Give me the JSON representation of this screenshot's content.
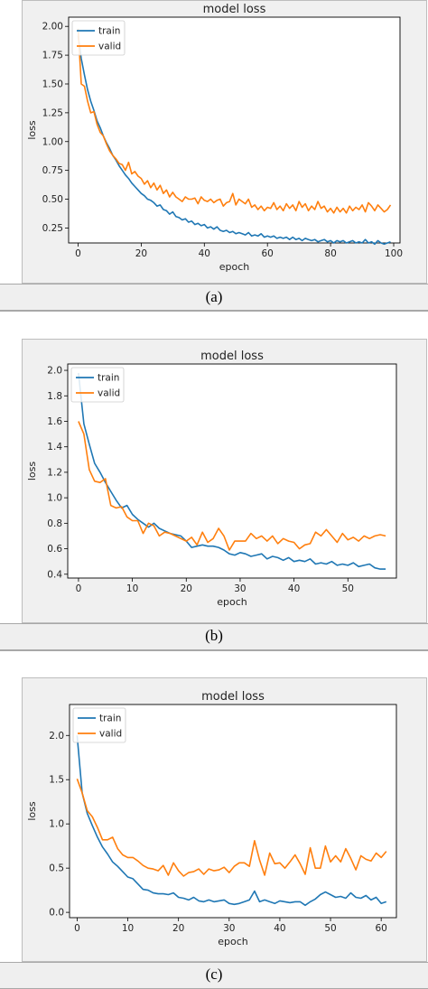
{
  "figure": {
    "captions": [
      "(a)",
      "(b)",
      "(c)"
    ]
  },
  "chart_data": [
    {
      "type": "line",
      "title": "model loss",
      "xlabel": "epoch",
      "ylabel": "loss",
      "xlim": [
        -3,
        102
      ],
      "ylim": [
        0.12,
        2.08
      ],
      "xticks": [
        0,
        20,
        40,
        60,
        80,
        100
      ],
      "yticks": [
        0.25,
        0.5,
        0.75,
        1.0,
        1.25,
        1.5,
        1.75,
        2.0
      ],
      "ytick_labels": [
        "0.25",
        "0.50",
        "0.75",
        "1.00",
        "1.25",
        "1.50",
        "1.75",
        "2.00"
      ],
      "grid": false,
      "legend": "top-left",
      "series": [
        {
          "name": "train",
          "color": "#1f77b4",
          "x": [
            0,
            1,
            2,
            3,
            4,
            5,
            6,
            7,
            8,
            9,
            10,
            11,
            12,
            13,
            14,
            15,
            16,
            17,
            18,
            19,
            20,
            21,
            22,
            23,
            24,
            25,
            26,
            27,
            28,
            29,
            30,
            31,
            32,
            33,
            34,
            35,
            36,
            37,
            38,
            39,
            40,
            41,
            42,
            43,
            44,
            45,
            46,
            47,
            48,
            49,
            50,
            51,
            52,
            53,
            54,
            55,
            56,
            57,
            58,
            59,
            60,
            61,
            62,
            63,
            64,
            65,
            66,
            67,
            68,
            69,
            70,
            71,
            72,
            73,
            74,
            75,
            76,
            77,
            78,
            79,
            80,
            81,
            82,
            83,
            84,
            85,
            86,
            87,
            88,
            89,
            90,
            91,
            92,
            93,
            94,
            95,
            96,
            97,
            98,
            99
          ],
          "y": [
            1.92,
            1.72,
            1.58,
            1.45,
            1.35,
            1.27,
            1.18,
            1.12,
            1.05,
            0.99,
            0.94,
            0.88,
            0.84,
            0.79,
            0.75,
            0.71,
            0.68,
            0.64,
            0.61,
            0.58,
            0.55,
            0.53,
            0.5,
            0.49,
            0.47,
            0.44,
            0.45,
            0.41,
            0.4,
            0.37,
            0.39,
            0.35,
            0.34,
            0.32,
            0.33,
            0.3,
            0.31,
            0.28,
            0.29,
            0.27,
            0.28,
            0.25,
            0.26,
            0.24,
            0.26,
            0.23,
            0.22,
            0.23,
            0.21,
            0.22,
            0.2,
            0.21,
            0.2,
            0.19,
            0.21,
            0.18,
            0.19,
            0.18,
            0.2,
            0.17,
            0.18,
            0.17,
            0.18,
            0.16,
            0.17,
            0.16,
            0.17,
            0.15,
            0.17,
            0.15,
            0.16,
            0.14,
            0.16,
            0.15,
            0.14,
            0.15,
            0.13,
            0.14,
            0.15,
            0.13,
            0.14,
            0.12,
            0.14,
            0.13,
            0.14,
            0.12,
            0.13,
            0.14,
            0.12,
            0.13,
            0.12,
            0.15,
            0.12,
            0.13,
            0.11,
            0.14,
            0.12,
            0.11,
            0.12,
            0.13
          ]
        },
        {
          "name": "valid",
          "color": "#ff7f0e",
          "x": [
            0,
            1,
            2,
            3,
            4,
            5,
            6,
            7,
            8,
            9,
            10,
            11,
            12,
            13,
            14,
            15,
            16,
            17,
            18,
            19,
            20,
            21,
            22,
            23,
            24,
            25,
            26,
            27,
            28,
            29,
            30,
            31,
            32,
            33,
            34,
            35,
            36,
            37,
            38,
            39,
            40,
            41,
            42,
            43,
            44,
            45,
            46,
            47,
            48,
            49,
            50,
            51,
            52,
            53,
            54,
            55,
            56,
            57,
            58,
            59,
            60,
            61,
            62,
            63,
            64,
            65,
            66,
            67,
            68,
            69,
            70,
            71,
            72,
            73,
            74,
            75,
            76,
            77,
            78,
            79,
            80,
            81,
            82,
            83,
            84,
            85,
            86,
            87,
            88,
            89,
            90,
            91,
            92,
            93,
            94,
            95,
            96,
            97,
            98,
            99
          ],
          "y": [
            1.98,
            1.5,
            1.48,
            1.35,
            1.25,
            1.26,
            1.15,
            1.08,
            1.05,
            0.98,
            0.92,
            0.88,
            0.85,
            0.81,
            0.8,
            0.75,
            0.82,
            0.72,
            0.74,
            0.7,
            0.68,
            0.63,
            0.66,
            0.6,
            0.64,
            0.58,
            0.62,
            0.55,
            0.58,
            0.52,
            0.56,
            0.52,
            0.5,
            0.48,
            0.52,
            0.5,
            0.5,
            0.51,
            0.46,
            0.52,
            0.49,
            0.48,
            0.5,
            0.47,
            0.49,
            0.5,
            0.44,
            0.47,
            0.48,
            0.55,
            0.45,
            0.5,
            0.48,
            0.46,
            0.5,
            0.43,
            0.45,
            0.41,
            0.44,
            0.4,
            0.43,
            0.42,
            0.47,
            0.41,
            0.44,
            0.4,
            0.46,
            0.42,
            0.45,
            0.4,
            0.48,
            0.43,
            0.46,
            0.4,
            0.44,
            0.41,
            0.48,
            0.42,
            0.44,
            0.39,
            0.42,
            0.38,
            0.43,
            0.39,
            0.42,
            0.38,
            0.44,
            0.4,
            0.43,
            0.41,
            0.45,
            0.39,
            0.47,
            0.44,
            0.4,
            0.45,
            0.42,
            0.39,
            0.41,
            0.45
          ]
        }
      ]
    },
    {
      "type": "line",
      "title": "model loss",
      "xlabel": "epoch",
      "ylabel": "loss",
      "xlim": [
        -2,
        59
      ],
      "ylim": [
        0.37,
        2.05
      ],
      "xticks": [
        0,
        10,
        20,
        30,
        40,
        50
      ],
      "yticks": [
        0.4,
        0.6,
        0.8,
        1.0,
        1.2,
        1.4,
        1.6,
        1.8,
        2.0
      ],
      "ytick_labels": [
        "0.4",
        "0.6",
        "0.8",
        "1.0",
        "1.2",
        "1.4",
        "1.6",
        "1.8",
        "2.0"
      ],
      "grid": false,
      "legend": "top-left",
      "series": [
        {
          "name": "train",
          "color": "#1f77b4",
          "x": [
            0,
            1,
            2,
            3,
            4,
            5,
            6,
            7,
            8,
            9,
            10,
            11,
            12,
            13,
            14,
            15,
            16,
            17,
            18,
            19,
            20,
            21,
            22,
            23,
            24,
            25,
            26,
            27,
            28,
            29,
            30,
            31,
            32,
            33,
            34,
            35,
            36,
            37,
            38,
            39,
            40,
            41,
            42,
            43,
            44,
            45,
            46,
            47,
            48,
            49,
            50,
            51,
            52,
            53,
            54,
            55,
            56,
            57
          ],
          "y": [
            1.98,
            1.58,
            1.42,
            1.27,
            1.2,
            1.12,
            1.05,
            0.98,
            0.92,
            0.94,
            0.87,
            0.83,
            0.8,
            0.77,
            0.8,
            0.76,
            0.74,
            0.72,
            0.71,
            0.7,
            0.66,
            0.61,
            0.62,
            0.63,
            0.62,
            0.62,
            0.61,
            0.59,
            0.56,
            0.55,
            0.57,
            0.56,
            0.54,
            0.55,
            0.56,
            0.52,
            0.54,
            0.53,
            0.51,
            0.53,
            0.5,
            0.51,
            0.5,
            0.52,
            0.48,
            0.49,
            0.48,
            0.5,
            0.47,
            0.48,
            0.47,
            0.49,
            0.46,
            0.47,
            0.48,
            0.45,
            0.44,
            0.44
          ]
        },
        {
          "name": "valid",
          "color": "#ff7f0e",
          "x": [
            0,
            1,
            2,
            3,
            4,
            5,
            6,
            7,
            8,
            9,
            10,
            11,
            12,
            13,
            14,
            15,
            16,
            17,
            18,
            19,
            20,
            21,
            22,
            23,
            24,
            25,
            26,
            27,
            28,
            29,
            30,
            31,
            32,
            33,
            34,
            35,
            36,
            37,
            38,
            39,
            40,
            41,
            42,
            43,
            44,
            45,
            46,
            47,
            48,
            49,
            50,
            51,
            52,
            53,
            54,
            55,
            56,
            57
          ],
          "y": [
            1.6,
            1.5,
            1.22,
            1.13,
            1.12,
            1.15,
            0.94,
            0.92,
            0.93,
            0.85,
            0.82,
            0.82,
            0.72,
            0.8,
            0.78,
            0.7,
            0.73,
            0.72,
            0.7,
            0.68,
            0.66,
            0.69,
            0.63,
            0.73,
            0.65,
            0.68,
            0.76,
            0.7,
            0.59,
            0.66,
            0.66,
            0.66,
            0.72,
            0.68,
            0.7,
            0.66,
            0.7,
            0.64,
            0.68,
            0.66,
            0.65,
            0.6,
            0.63,
            0.64,
            0.73,
            0.7,
            0.75,
            0.7,
            0.65,
            0.72,
            0.67,
            0.69,
            0.66,
            0.7,
            0.68,
            0.7,
            0.71,
            0.7
          ]
        }
      ]
    },
    {
      "type": "line",
      "title": "model loss",
      "xlabel": "epoch",
      "ylabel": "loss",
      "xlim": [
        -1.5,
        63
      ],
      "ylim": [
        -0.06,
        2.35
      ],
      "xticks": [
        0,
        10,
        20,
        30,
        40,
        50,
        60
      ],
      "yticks": [
        0.0,
        0.5,
        1.0,
        1.5,
        2.0
      ],
      "ytick_labels": [
        "0.0",
        "0.5",
        "1.0",
        "1.5",
        "2.0"
      ],
      "grid": false,
      "legend": "top-left",
      "series": [
        {
          "name": "train",
          "color": "#1f77b4",
          "x": [
            0,
            1,
            2,
            3,
            4,
            5,
            6,
            7,
            8,
            9,
            10,
            11,
            12,
            13,
            14,
            15,
            16,
            17,
            18,
            19,
            20,
            21,
            22,
            23,
            24,
            25,
            26,
            27,
            28,
            29,
            30,
            31,
            32,
            33,
            34,
            35,
            36,
            37,
            38,
            39,
            40,
            41,
            42,
            43,
            44,
            45,
            46,
            47,
            48,
            49,
            50,
            51,
            52,
            53,
            54,
            55,
            56,
            57,
            58,
            59,
            60,
            61
          ],
          "y": [
            2.0,
            1.35,
            1.12,
            0.98,
            0.85,
            0.74,
            0.66,
            0.57,
            0.52,
            0.46,
            0.4,
            0.38,
            0.32,
            0.26,
            0.25,
            0.22,
            0.21,
            0.21,
            0.2,
            0.22,
            0.17,
            0.16,
            0.14,
            0.17,
            0.13,
            0.12,
            0.14,
            0.12,
            0.13,
            0.14,
            0.1,
            0.09,
            0.1,
            0.12,
            0.14,
            0.24,
            0.12,
            0.14,
            0.12,
            0.1,
            0.13,
            0.12,
            0.11,
            0.12,
            0.12,
            0.08,
            0.12,
            0.15,
            0.2,
            0.23,
            0.2,
            0.17,
            0.18,
            0.16,
            0.22,
            0.17,
            0.16,
            0.19,
            0.14,
            0.17,
            0.1,
            0.12
          ]
        },
        {
          "name": "valid",
          "color": "#ff7f0e",
          "x": [
            0,
            1,
            2,
            3,
            4,
            5,
            6,
            7,
            8,
            9,
            10,
            11,
            12,
            13,
            14,
            15,
            16,
            17,
            18,
            19,
            20,
            21,
            22,
            23,
            24,
            25,
            26,
            27,
            28,
            29,
            30,
            31,
            32,
            33,
            34,
            35,
            36,
            37,
            38,
            39,
            40,
            41,
            42,
            43,
            44,
            45,
            46,
            47,
            48,
            49,
            50,
            51,
            52,
            53,
            54,
            55,
            56,
            57,
            58,
            59,
            60,
            61
          ],
          "y": [
            1.51,
            1.35,
            1.15,
            1.08,
            0.96,
            0.82,
            0.82,
            0.85,
            0.72,
            0.65,
            0.62,
            0.62,
            0.58,
            0.53,
            0.5,
            0.49,
            0.47,
            0.53,
            0.42,
            0.56,
            0.47,
            0.41,
            0.45,
            0.46,
            0.49,
            0.43,
            0.49,
            0.47,
            0.48,
            0.51,
            0.45,
            0.52,
            0.56,
            0.56,
            0.52,
            0.81,
            0.59,
            0.42,
            0.67,
            0.55,
            0.56,
            0.5,
            0.57,
            0.65,
            0.55,
            0.43,
            0.73,
            0.5,
            0.5,
            0.75,
            0.57,
            0.64,
            0.57,
            0.72,
            0.61,
            0.48,
            0.64,
            0.6,
            0.58,
            0.67,
            0.62,
            0.69
          ]
        }
      ]
    }
  ]
}
